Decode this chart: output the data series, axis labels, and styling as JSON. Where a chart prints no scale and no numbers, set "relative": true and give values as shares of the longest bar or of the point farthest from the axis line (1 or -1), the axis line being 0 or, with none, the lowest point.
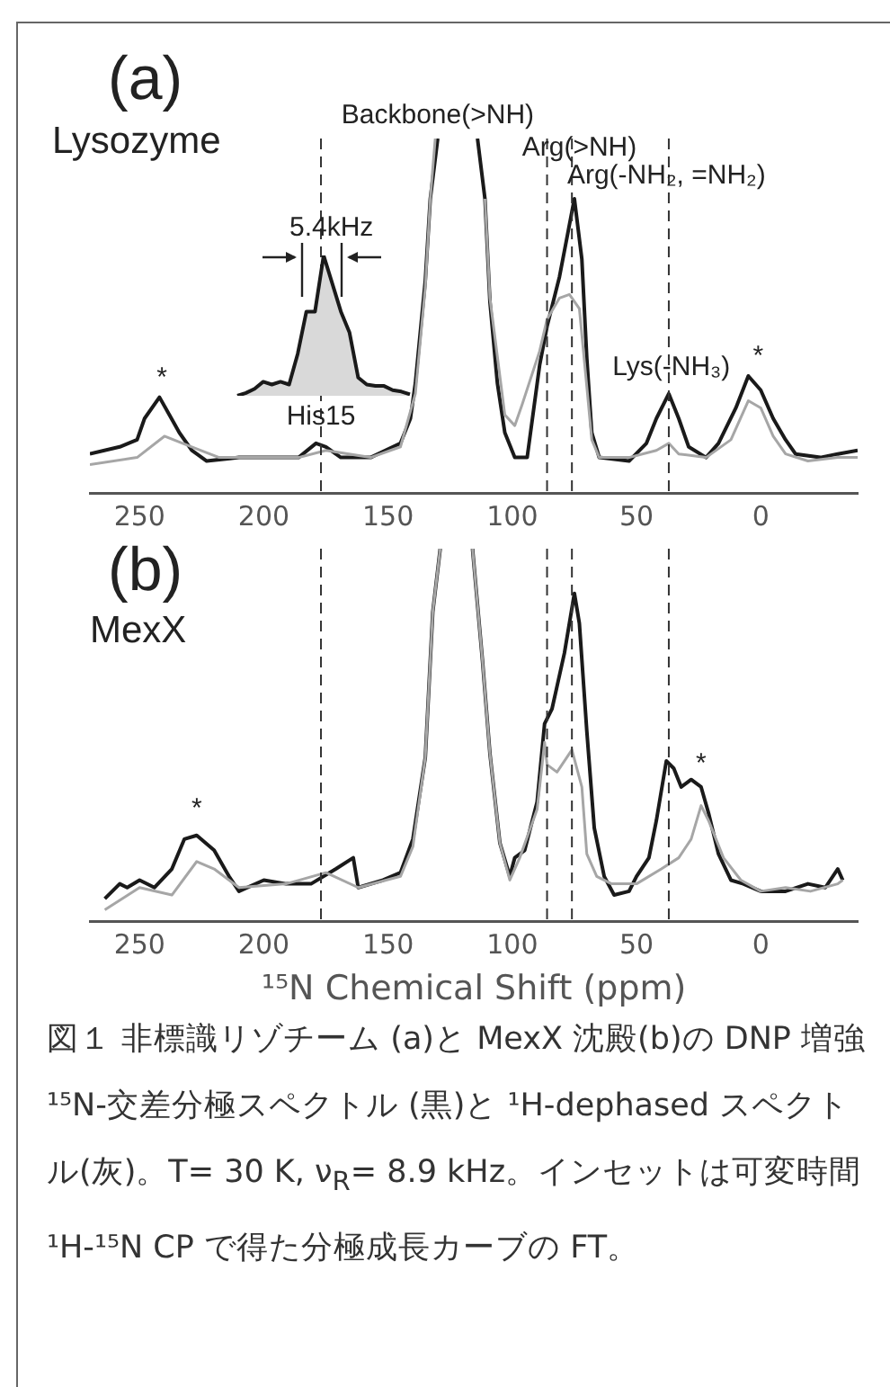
{
  "chart_data": [
    {
      "type": "line",
      "title": "(a)",
      "subtitle": "Lysozyme",
      "relative": true,
      "xlim": [
        270,
        -39
      ],
      "xticks": [
        250,
        200,
        150,
        100,
        50,
        0
      ],
      "grid": false,
      "legend": false,
      "marker": "none",
      "series": [
        {
          "color": "#1a1a1a",
          "x": [
            270,
            258,
            251,
            248,
            242,
            238,
            234,
            229,
            223,
            210,
            198,
            186,
            179,
            175,
            169,
            157,
            145,
            141,
            139,
            135,
            133,
            130,
            122,
            114,
            111,
            109,
            106,
            103,
            99,
            94,
            89,
            86,
            81,
            75,
            72,
            70,
            68,
            65,
            53,
            46,
            42,
            37,
            33,
            29,
            22,
            17,
            10,
            5,
            0,
            -5,
            -10,
            -14,
            -24,
            -31,
            -39
          ],
          "values": [
            0.11,
            0.13,
            0.15,
            0.21,
            0.27,
            0.22,
            0.17,
            0.12,
            0.09,
            0.1,
            0.1,
            0.1,
            0.14,
            0.13,
            0.1,
            0.1,
            0.14,
            0.21,
            0.31,
            0.6,
            0.83,
            1.0,
            null,
            1.0,
            0.83,
            0.54,
            0.31,
            0.17,
            0.1,
            0.1,
            0.36,
            0.47,
            0.61,
            0.83,
            0.66,
            0.38,
            0.17,
            0.1,
            0.09,
            0.14,
            0.21,
            0.28,
            0.21,
            0.13,
            0.1,
            0.14,
            0.24,
            0.33,
            0.29,
            0.21,
            0.15,
            0.11,
            0.1,
            0.11,
            0.12
          ]
        },
        {
          "color": "#a6a6a6",
          "x": [
            270,
            251,
            240,
            229,
            218,
            186,
            175,
            157,
            145,
            139,
            135,
            133,
            131,
            121,
            111,
            109,
            103,
            99,
            96,
            89,
            86,
            81,
            77,
            73,
            70,
            68,
            65,
            53,
            42,
            37,
            33,
            22,
            12,
            5,
            0,
            -5,
            -10,
            -19,
            -31,
            -39
          ],
          "values": [
            0.08,
            0.1,
            0.16,
            0.13,
            0.1,
            0.1,
            0.12,
            0.1,
            0.13,
            0.28,
            0.58,
            0.83,
            1.0,
            null,
            0.83,
            0.55,
            0.22,
            0.19,
            0.25,
            0.4,
            0.49,
            0.55,
            0.56,
            0.52,
            0.3,
            0.15,
            0.1,
            0.1,
            0.12,
            0.14,
            0.11,
            0.1,
            0.15,
            0.26,
            0.24,
            0.16,
            0.11,
            0.09,
            0.1,
            0.1
          ]
        }
      ],
      "ref_lines": [
        {
          "axis": "x",
          "value": 177,
          "line_style": "dashed"
        },
        {
          "axis": "x",
          "value": 86,
          "line_style": "dashed"
        },
        {
          "axis": "x",
          "value": 76,
          "line_style": "dashed"
        },
        {
          "axis": "x",
          "value": 37,
          "line_style": "dashed"
        }
      ],
      "annotations": [
        {
          "text": "Backbone(>NH)",
          "x": 130,
          "y": 1.0
        },
        {
          "text": "Arg(>NH)",
          "x": 73,
          "y": 0.91
        },
        {
          "text": "Arg(-NH₂, =NH₂)",
          "x": 75,
          "y": 0.83
        },
        {
          "text": "Lys(-NH₃)",
          "x": 36,
          "y": 0.29
        },
        {
          "text": "His15",
          "x": 177,
          "y": 0.15
        },
        {
          "text": "*",
          "x": 241,
          "y": 0.26
        },
        {
          "text": "*",
          "x": 1,
          "y": 0.32
        }
      ]
    },
    {
      "type": "line",
      "title": "(b)",
      "subtitle": "MexX",
      "xlabel": "¹⁵N Chemical Shift (ppm)",
      "relative": true,
      "xlim": [
        270,
        -39
      ],
      "xticks": [
        250,
        200,
        150,
        100,
        50,
        0
      ],
      "grid": false,
      "legend": false,
      "marker": "none",
      "series": [
        {
          "color": "#1a1a1a",
          "x": [
            264,
            258,
            255,
            250,
            244,
            237,
            232,
            227,
            220,
            214,
            210,
            200,
            191,
            181,
            171,
            164,
            162,
            152,
            145,
            140,
            135,
            132,
            129,
            122,
            116,
            112,
            109,
            105,
            101,
            99,
            95,
            90,
            87,
            84,
            79,
            75,
            73,
            70,
            67,
            63,
            59,
            53,
            50,
            45,
            42,
            38,
            35,
            32,
            28,
            24,
            21,
            17,
            12,
            7,
            0,
            -10,
            -19,
            -26,
            -31,
            -33
          ],
          "values": [
            0.06,
            0.1,
            0.09,
            0.11,
            0.09,
            0.14,
            0.22,
            0.23,
            0.19,
            0.12,
            0.08,
            0.11,
            0.1,
            0.1,
            0.14,
            0.17,
            0.09,
            0.11,
            0.13,
            0.22,
            0.44,
            0.83,
            1.0,
            null,
            1.0,
            0.7,
            0.45,
            0.21,
            0.12,
            0.17,
            0.19,
            0.32,
            0.53,
            0.57,
            0.72,
            0.88,
            0.8,
            0.51,
            0.25,
            0.12,
            0.07,
            0.08,
            0.12,
            0.17,
            0.27,
            0.43,
            0.41,
            0.36,
            0.38,
            0.36,
            0.29,
            0.18,
            0.11,
            0.1,
            0.08,
            0.08,
            0.1,
            0.09,
            0.14,
            0.11
          ]
        },
        {
          "color": "#a6a6a6",
          "x": [
            264,
            250,
            237,
            227,
            220,
            210,
            191,
            175,
            162,
            145,
            140,
            135,
            132,
            129,
            122,
            116,
            112,
            109,
            105,
            101,
            97,
            90,
            87,
            86,
            82,
            78,
            76,
            72,
            70,
            66,
            60,
            50,
            40,
            33,
            28,
            24,
            21,
            15,
            8,
            0,
            -10,
            -20,
            -31,
            -33
          ],
          "values": [
            0.03,
            0.09,
            0.07,
            0.16,
            0.14,
            0.09,
            0.1,
            0.13,
            0.09,
            0.12,
            0.2,
            0.44,
            0.83,
            1.0,
            null,
            1.0,
            0.7,
            0.45,
            0.21,
            0.11,
            0.17,
            0.3,
            0.48,
            0.42,
            0.4,
            0.44,
            0.46,
            0.36,
            0.18,
            0.12,
            0.1,
            0.1,
            0.14,
            0.17,
            0.22,
            0.31,
            0.27,
            0.17,
            0.11,
            0.08,
            0.09,
            0.08,
            0.1,
            0.11
          ]
        }
      ],
      "ref_lines": [
        {
          "axis": "x",
          "value": 177,
          "line_style": "dashed"
        },
        {
          "axis": "x",
          "value": 86,
          "line_style": "dashed"
        },
        {
          "axis": "x",
          "value": 76,
          "line_style": "dashed"
        },
        {
          "axis": "x",
          "value": 37,
          "line_style": "dashed"
        }
      ],
      "annotations": [
        {
          "text": "*",
          "x": 227,
          "y": 0.24
        },
        {
          "text": "*",
          "x": 24,
          "y": 0.36
        },
        "図１ 非標識リゾチーム (a)と MexX 沈殿(b)の DNP 増強 ¹⁵N-交差分極スペクトル (黒)と ¹H-dephased スペクトル(灰)。T= 30 K, ν$_{R}$= 8.9 kHz。インセットは可変時間 ¹H-¹⁵N CP で得た分極成長カーブの FT。"
      ]
    },
    {
      "type": "area",
      "relative": true,
      "legend": false,
      "marker": "none",
      "categories": [
        null,
        null,
        null,
        null,
        null,
        null,
        null,
        null,
        null,
        null,
        null,
        null,
        null,
        null,
        null,
        null,
        null,
        null,
        null,
        null,
        null
      ],
      "series": [
        {
          "color": "#1a1a1a",
          "values": [
            0,
            0.02,
            0.05,
            0.1,
            0.08,
            0.1,
            0.08,
            0.3,
            0.6,
            0.6,
            1.0,
            0.8,
            0.6,
            0.45,
            0.13,
            0.08,
            0.07,
            0.07,
            0.04,
            0.03,
            0.01
          ]
        }
      ],
      "annotations": [
        "5.4kHz"
      ]
    }
  ]
}
